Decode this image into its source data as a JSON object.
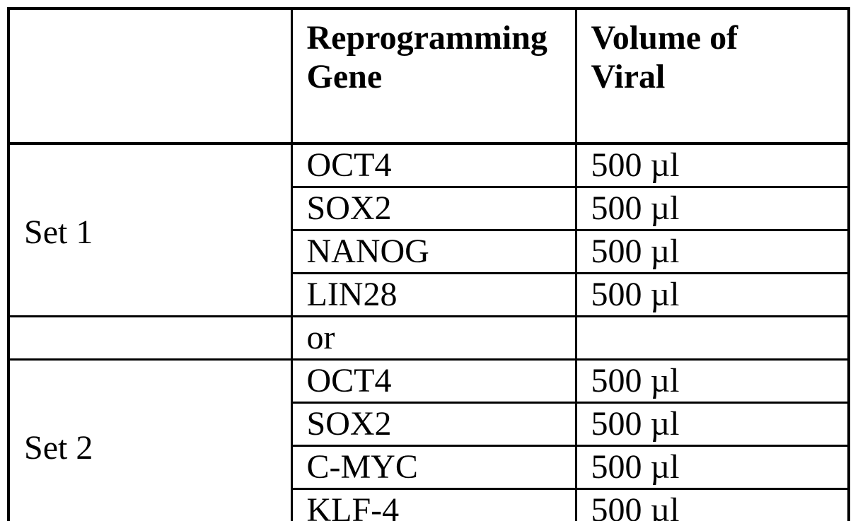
{
  "table": {
    "header": {
      "corner": "",
      "gene": {
        "line1": "Reprogramming",
        "line2": "Gene"
      },
      "volume": {
        "line1": "Volume of",
        "line2": "Viral"
      }
    },
    "set1": {
      "label": "Set 1",
      "rows": [
        {
          "gene": "OCT4",
          "volume": "500 µl"
        },
        {
          "gene": "SOX2",
          "volume": "500 µl"
        },
        {
          "gene": "NANOG",
          "volume": "500 µl"
        },
        {
          "gene": "LIN28",
          "volume": "500 µl"
        }
      ]
    },
    "or_row": {
      "left": "",
      "gene": "or",
      "volume": ""
    },
    "set2": {
      "label": "Set 2",
      "rows": [
        {
          "gene": "OCT4",
          "volume": "500 µl"
        },
        {
          "gene": "SOX2",
          "volume": "500 µl"
        },
        {
          "gene": "C-MYC",
          "volume": "500 µl"
        },
        {
          "gene": "KLF-4",
          "volume": "500 µl"
        }
      ]
    },
    "colors": {
      "border": "#000000",
      "text": "#000000",
      "background": "#ffffff"
    }
  }
}
